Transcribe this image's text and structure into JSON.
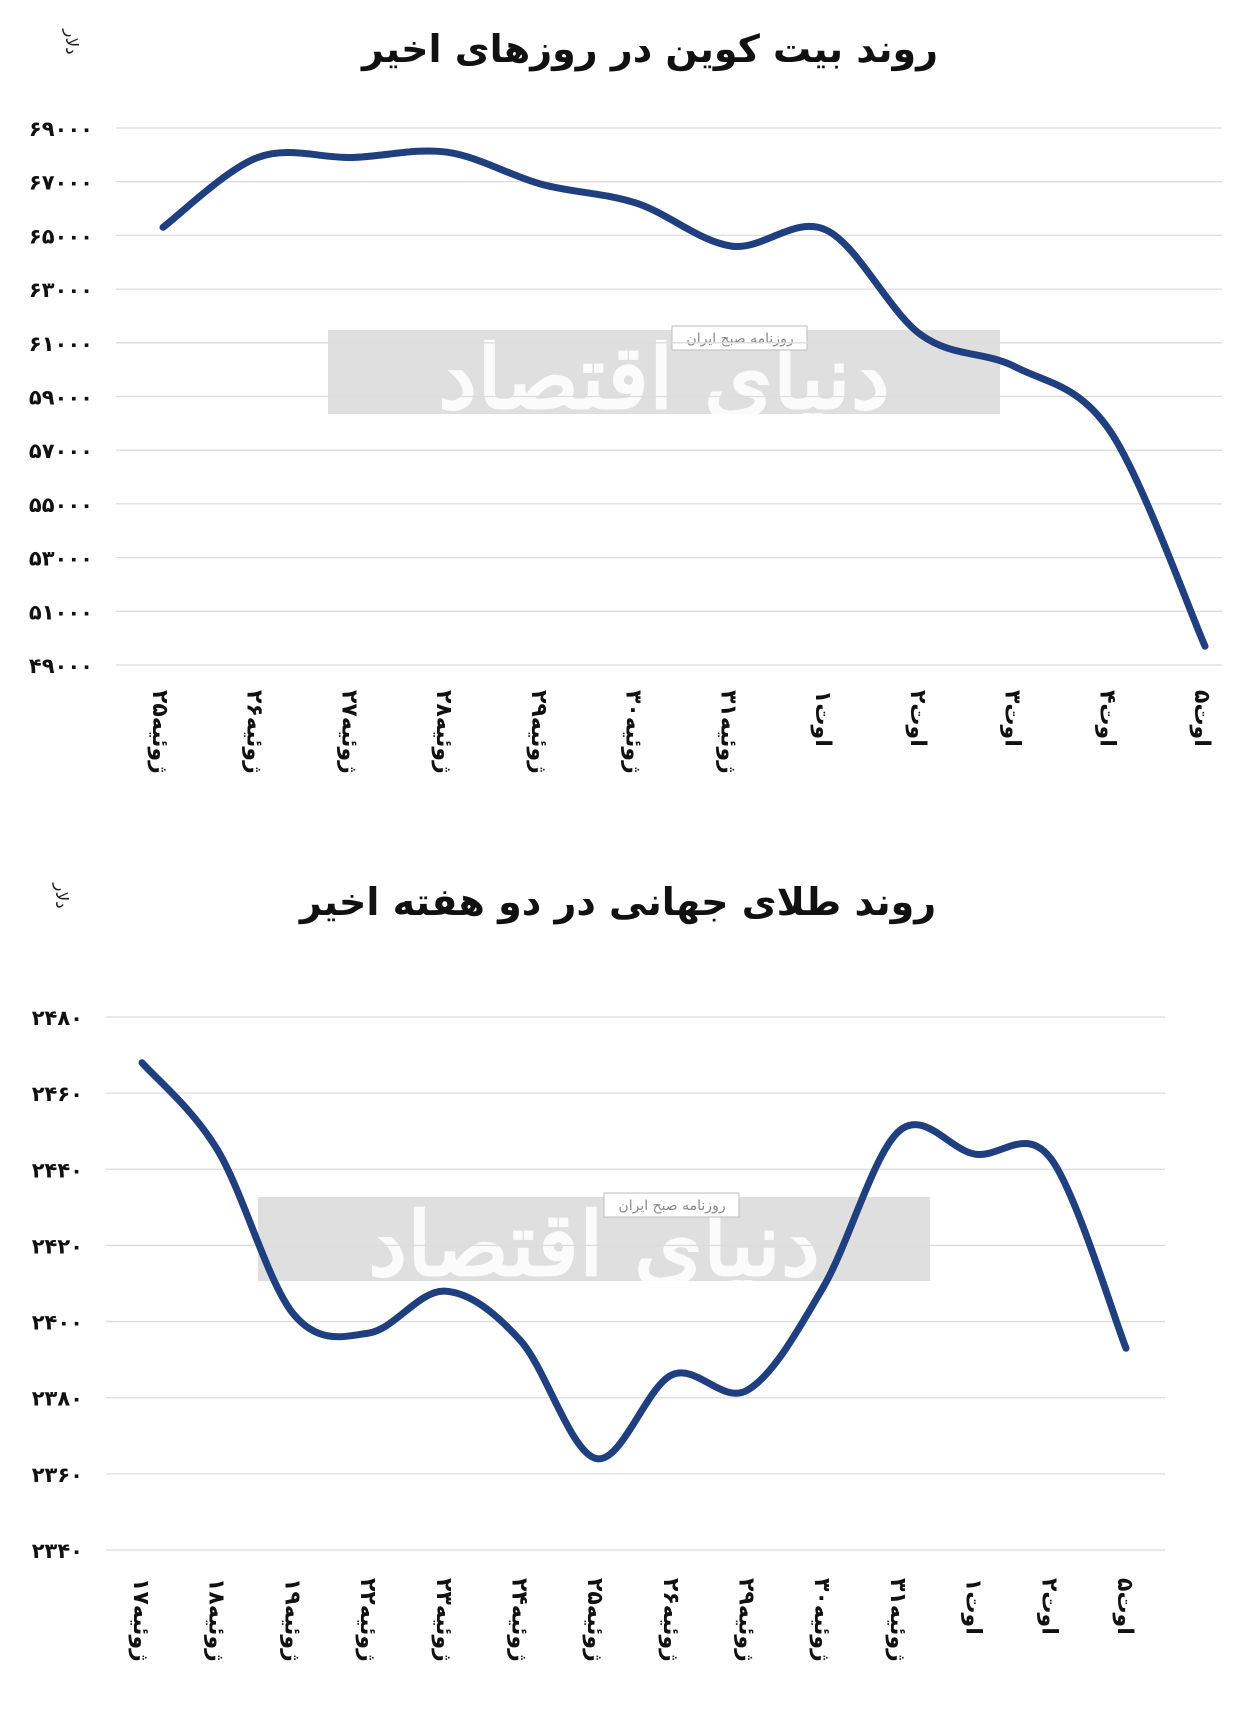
{
  "colors": {
    "line": "#1f3f7f",
    "grid": "#dcdcdc",
    "watermark_band": "#d9d9d9"
  },
  "watermark": {
    "main": "دنیای اقتصاد",
    "sub": "روزنامه صبح ایران"
  },
  "chart_data": [
    {
      "type": "line",
      "title": "روند بیت کوین در روزهای اخیر",
      "unit_label": "دلار",
      "ylim": [
        49000,
        69000
      ],
      "y_ticks": [
        49000,
        51000,
        53000,
        55000,
        57000,
        59000,
        61000,
        63000,
        65000,
        67000,
        69000
      ],
      "y_tick_labels": [
        "۴۹۰۰۰",
        "۵۱۰۰۰",
        "۵۳۰۰۰",
        "۵۵۰۰۰",
        "۵۷۰۰۰",
        "۵۹۰۰۰",
        "۶۱۰۰۰",
        "۶۳۰۰۰",
        "۶۵۰۰۰",
        "۶۷۰۰۰",
        "۶۹۰۰۰"
      ],
      "categories": [
        "۲۵ژوئیه",
        "۲۶ژوئیه",
        "۲۷ژوئیه",
        "۲۸ژوئیه",
        "۲۹ژوئیه",
        "۳۰ژوئیه",
        "۳۱ژوئیه",
        "۱اوت",
        "۲اوت",
        "۳اوت",
        "۴اوت",
        "۵اوت"
      ],
      "values": [
        65300,
        67900,
        67900,
        68100,
        66900,
        66200,
        64600,
        65200,
        61300,
        60100,
        57700,
        49700
      ],
      "grid": true
    },
    {
      "type": "line",
      "title": "روند طلای جهانی در دو هفته اخیر",
      "unit_label": "دلار",
      "ylim": [
        2340,
        2480
      ],
      "y_ticks": [
        2340,
        2360,
        2380,
        2400,
        2420,
        2440,
        2460,
        2480
      ],
      "y_tick_labels": [
        "۲۳۴۰",
        "۲۳۶۰",
        "۲۳۸۰",
        "۲۴۰۰",
        "۲۴۲۰",
        "۲۴۴۰",
        "۲۴۶۰",
        "۲۴۸۰"
      ],
      "categories": [
        "۱۷ژوئیه",
        "۱۸ژوئیه",
        "۱۹ژوئیه",
        "۲۲ژوئیه",
        "۲۳ژوئیه",
        "۲۴ژوئیه",
        "۲۵ژوئیه",
        "۲۶ژوئیه",
        "۲۹ژوئیه",
        "۳۰ژوئیه",
        "۳۱ژوئیه",
        "۱اوت",
        "۲اوت",
        "۵اوت"
      ],
      "values": [
        2468,
        2445,
        2402,
        2397,
        2408,
        2395,
        2364,
        2386,
        2382,
        2409,
        2450,
        2444,
        2443,
        2393
      ],
      "grid": true
    }
  ]
}
